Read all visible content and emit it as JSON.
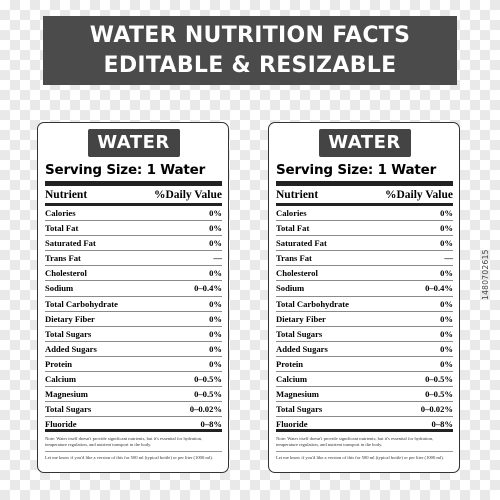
{
  "banner": {
    "line1": "WATER NUTRITION FACTS",
    "line2": "EDITABLE & RESIZABLE"
  },
  "labels": [
    {
      "title": "WATER",
      "serving": "Serving Size: 1 Water",
      "header": {
        "nutrient": "Nutrient",
        "daily": "%Daily Value"
      },
      "rows": [
        {
          "name": "Calories",
          "value": "0%"
        },
        {
          "name": "Total Fat",
          "value": "0%"
        },
        {
          "name": "Saturated Fat",
          "value": "0%"
        },
        {
          "name": "Trans Fat",
          "value": "—"
        },
        {
          "name": "Cholesterol",
          "value": "0%"
        },
        {
          "name": "Sodium",
          "value": "0–0.4%"
        },
        {
          "name": "Total Carbohydrate",
          "value": "0%"
        },
        {
          "name": "Dietary Fiber",
          "value": "0%"
        },
        {
          "name": "Total Sugars",
          "value": "0%"
        },
        {
          "name": "Added Sugars",
          "value": "0%"
        },
        {
          "name": "Protein",
          "value": "0%"
        },
        {
          "name": "Calcium",
          "value": "0–0.5%"
        },
        {
          "name": "Magnesium",
          "value": "0–0.5%"
        },
        {
          "name": "Total Sugars",
          "value": "0–0.02%"
        },
        {
          "name": "Fluoride",
          "value": "0–8%"
        }
      ],
      "note": "Note: Water itself doesn't provide significant nutrients, but it's essential for hydration, temperature regulation, and nutrient transport in the body.",
      "ask": "Let me know if you'd like a version of this for 500 ml (typical bottle) or per liter (1000 ml)."
    },
    {
      "title": "WATER",
      "serving": "Serving Size: 1 Water",
      "header": {
        "nutrient": "Nutrient",
        "daily": "%Daily Value"
      },
      "rows": [
        {
          "name": "Calories",
          "value": "0%"
        },
        {
          "name": "Total Fat",
          "value": "0%"
        },
        {
          "name": "Saturated Fat",
          "value": "0%"
        },
        {
          "name": "Trans Fat",
          "value": "—"
        },
        {
          "name": "Cholesterol",
          "value": "0%"
        },
        {
          "name": "Sodium",
          "value": "0–0.4%"
        },
        {
          "name": "Total Carbohydrate",
          "value": "0%"
        },
        {
          "name": "Dietary Fiber",
          "value": "0%"
        },
        {
          "name": "Total Sugars",
          "value": "0%"
        },
        {
          "name": "Added Sugars",
          "value": "0%"
        },
        {
          "name": "Protein",
          "value": "0%"
        },
        {
          "name": "Calcium",
          "value": "0–0.5%"
        },
        {
          "name": "Magnesium",
          "value": "0–0.5%"
        },
        {
          "name": "Total Sugars",
          "value": "0–0.02%"
        },
        {
          "name": "Fluoride",
          "value": "0–8%"
        }
      ],
      "note": "Note: Water itself doesn't provide significant nutrients, but it's essential for hydration, temperature regulation, and nutrient transport in the body.",
      "ask": "Let me know if you'd like a version of this for 500 ml (typical bottle) or per liter (1000 ml)."
    }
  ],
  "stock_id": "1480702615",
  "colors": {
    "banner_bg": "#4b4b4b",
    "badge_bg": "#444444",
    "rule": "#222222"
  }
}
